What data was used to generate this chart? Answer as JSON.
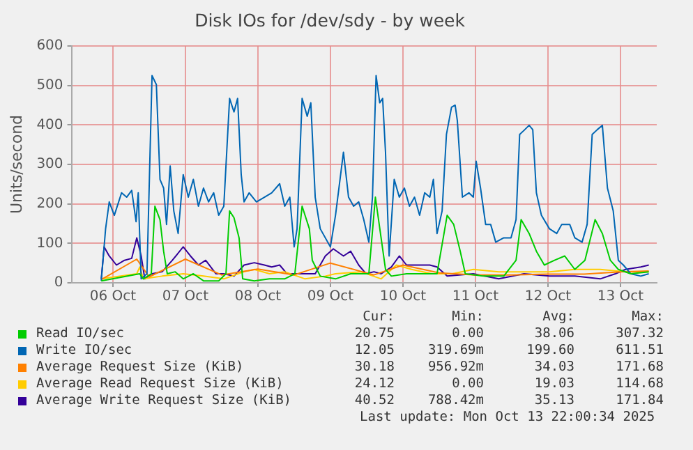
{
  "chart_data": {
    "type": "line",
    "title": "Disk IOs for /dev/sdy - by week",
    "ylabel": "Units/second",
    "xlim": [
      "2025-10-05T22:19",
      "2025-10-14T00:00"
    ],
    "xticks": [
      {
        "value": "2025-10-06T12:00",
        "label": "06 Oct"
      },
      {
        "value": "2025-10-07T12:00",
        "label": "07 Oct"
      },
      {
        "value": "2025-10-08T12:00",
        "label": "08 Oct"
      },
      {
        "value": "2025-10-09T12:00",
        "label": "09 Oct"
      },
      {
        "value": "2025-10-10T12:00",
        "label": "10 Oct"
      },
      {
        "value": "2025-10-11T12:00",
        "label": "11 Oct"
      },
      {
        "value": "2025-10-12T12:00",
        "label": "12 Oct"
      },
      {
        "value": "2025-10-13T12:00",
        "label": "13 Oct"
      }
    ],
    "ylim": [
      0,
      600
    ],
    "yticks": [
      0,
      100,
      200,
      300,
      400,
      500,
      600
    ],
    "grid": true,
    "legend": "bottom",
    "line_style": "solid",
    "marker": "none",
    "series": [
      {
        "name": "Read IO/sec",
        "color": "#00cc00",
        "x": [
          "2025-10-06T08:10",
          "2025-10-06T20:53",
          "2025-10-06T22:05",
          "2025-10-07T00:43",
          "2025-10-07T01:55",
          "2025-10-07T03:36",
          "2025-10-07T04:48",
          "2025-10-07T06:00",
          "2025-10-07T08:38",
          "2025-10-07T11:17",
          "2025-10-07T14:38",
          "2025-10-07T18:00",
          "2025-10-07T23:02",
          "2025-10-08T01:26",
          "2025-10-08T02:38",
          "2025-10-08T04:05",
          "2025-10-08T05:46",
          "2025-10-08T06:58",
          "2025-10-08T10:48",
          "2025-10-08T15:50",
          "2025-10-08T20:53",
          "2025-10-09T00:14",
          "2025-10-09T02:38",
          "2025-10-09T05:02",
          "2025-10-09T06:00",
          "2025-10-09T08:38",
          "2025-10-09T13:41",
          "2025-10-09T18:43",
          "2025-10-10T00:43",
          "2025-10-10T02:53",
          "2025-10-10T04:34",
          "2025-10-10T06:14",
          "2025-10-10T08:10",
          "2025-10-10T13:12",
          "2025-10-10T18:14",
          "2025-10-10T23:17",
          "2025-10-11T02:38",
          "2025-10-11T04:48",
          "2025-10-11T06:58",
          "2025-10-11T08:38",
          "2025-10-11T14:38",
          "2025-10-11T21:22",
          "2025-10-12T01:26",
          "2025-10-12T03:07",
          "2025-10-12T05:46",
          "2025-10-12T08:10",
          "2025-10-12T10:48",
          "2025-10-12T14:10",
          "2025-10-12T17:31",
          "2025-10-12T20:53",
          "2025-10-13T00:14",
          "2025-10-13T03:36",
          "2025-10-13T06:00",
          "2025-10-13T08:38",
          "2025-10-13T11:17",
          "2025-10-13T15:22",
          "2025-10-13T21:22"
        ],
        "values": [
          5,
          23,
          10,
          23,
          194,
          160,
          80,
          23,
          28,
          10,
          23,
          5,
          5,
          23,
          182,
          165,
          114,
          10,
          5,
          10,
          10,
          23,
          194,
          137,
          57,
          17,
          10,
          23,
          23,
          217,
          125,
          34,
          17,
          23,
          23,
          23,
          171,
          148,
          80,
          23,
          17,
          17,
          57,
          160,
          125,
          80,
          45,
          57,
          68,
          34,
          57,
          160,
          125,
          57,
          34,
          23,
          28
        ]
      },
      {
        "name": "Write IO/sec",
        "color": "#0066b3",
        "x": [
          "2025-10-06T08:10",
          "2025-10-06T09:36",
          "2025-10-06T10:48",
          "2025-10-06T12:29",
          "2025-10-06T14:53",
          "2025-10-06T16:34",
          "2025-10-06T18:14",
          "2025-10-06T19:41",
          "2025-10-06T20:24",
          "2025-10-06T21:22",
          "2025-10-06T23:17",
          "2025-10-07T00:58",
          "2025-10-07T02:24",
          "2025-10-07T03:36",
          "2025-10-07T04:48",
          "2025-10-07T05:46",
          "2025-10-07T06:58",
          "2025-10-07T08:10",
          "2025-10-07T09:36",
          "2025-10-07T11:17",
          "2025-10-07T12:58",
          "2025-10-07T14:38",
          "2025-10-07T16:19",
          "2025-10-07T18:00",
          "2025-10-07T19:41",
          "2025-10-07T21:22",
          "2025-10-07T23:02",
          "2025-10-08T00:43",
          "2025-10-08T02:38",
          "2025-10-08T04:05",
          "2025-10-08T05:17",
          "2025-10-08T06:29",
          "2025-10-08T07:26",
          "2025-10-08T09:07",
          "2025-10-08T11:31",
          "2025-10-08T14:10",
          "2025-10-08T16:34",
          "2025-10-08T19:12",
          "2025-10-08T20:53",
          "2025-10-08T22:34",
          "2025-10-09T00:00",
          "2025-10-09T00:58",
          "2025-10-09T02:38",
          "2025-10-09T04:19",
          "2025-10-09T05:31",
          "2025-10-09T06:58",
          "2025-10-09T08:38",
          "2025-10-09T12:00",
          "2025-10-09T13:41",
          "2025-10-09T16:19",
          "2025-10-09T18:00",
          "2025-10-09T19:41",
          "2025-10-09T21:22",
          "2025-10-09T23:02",
          "2025-10-10T00:43",
          "2025-10-10T01:55",
          "2025-10-10T03:07",
          "2025-10-10T04:19",
          "2025-10-10T05:17",
          "2025-10-10T06:14",
          "2025-10-10T07:26",
          "2025-10-10T09:07",
          "2025-10-10T10:48",
          "2025-10-10T12:29",
          "2025-10-10T14:10",
          "2025-10-10T15:50",
          "2025-10-10T17:31",
          "2025-10-10T19:12",
          "2025-10-10T20:53",
          "2025-10-10T22:05",
          "2025-10-10T23:17",
          "2025-10-11T00:58",
          "2025-10-11T02:24",
          "2025-10-11T04:05",
          "2025-10-11T05:17",
          "2025-10-11T06:00",
          "2025-10-11T07:41",
          "2025-10-11T09:50",
          "2025-10-11T11:17",
          "2025-10-11T12:14",
          "2025-10-11T13:41",
          "2025-10-11T15:22",
          "2025-10-11T17:02",
          "2025-10-11T18:43",
          "2025-10-11T21:22",
          "2025-10-11T23:46",
          "2025-10-12T01:26",
          "2025-10-12T02:38",
          "2025-10-12T04:19",
          "2025-10-12T05:46",
          "2025-10-12T06:58",
          "2025-10-12T08:10",
          "2025-10-12T09:50",
          "2025-10-12T12:29",
          "2025-10-12T14:53",
          "2025-10-12T16:34",
          "2025-10-12T19:12",
          "2025-10-12T20:53",
          "2025-10-12T23:17",
          "2025-10-13T00:58",
          "2025-10-13T02:38",
          "2025-10-13T04:19",
          "2025-10-13T06:00",
          "2025-10-13T07:41",
          "2025-10-13T09:36",
          "2025-10-13T11:17",
          "2025-10-13T12:58",
          "2025-10-13T15:22",
          "2025-10-13T18:43",
          "2025-10-13T21:22"
        ],
        "values": [
          5,
          137,
          205,
          171,
          228,
          217,
          234,
          155,
          228,
          10,
          23,
          525,
          502,
          262,
          240,
          148,
          296,
          182,
          125,
          274,
          217,
          262,
          194,
          240,
          205,
          228,
          171,
          194,
          467,
          433,
          467,
          274,
          205,
          228,
          205,
          217,
          228,
          251,
          194,
          217,
          91,
          137,
          467,
          422,
          456,
          217,
          137,
          91,
          171,
          331,
          217,
          194,
          205,
          160,
          103,
          217,
          525,
          456,
          467,
          331,
          68,
          262,
          217,
          240,
          194,
          217,
          171,
          228,
          217,
          262,
          125,
          182,
          376,
          445,
          450,
          411,
          217,
          228,
          217,
          308,
          240,
          148,
          148,
          103,
          114,
          114,
          160,
          376,
          388,
          399,
          388,
          228,
          171,
          137,
          125,
          148,
          148,
          114,
          103,
          148,
          376,
          388,
          399,
          240,
          182,
          57,
          45,
          23,
          17,
          23
        ]
      },
      {
        "name": "Average Request Size (KiB)",
        "color": "#ff8000",
        "x": [
          "2025-10-06T08:10",
          "2025-10-06T19:55",
          "2025-10-07T00:00",
          "2025-10-07T12:00",
          "2025-10-08T00:00",
          "2025-10-08T12:00",
          "2025-10-09T00:00",
          "2025-10-09T12:00",
          "2025-10-10T02:24",
          "2025-10-10T12:00",
          "2025-10-11T00:00",
          "2025-10-11T12:00",
          "2025-10-12T00:00",
          "2025-10-12T12:00",
          "2025-10-13T00:00",
          "2025-10-13T12:00",
          "2025-10-13T21:22"
        ],
        "values": [
          8,
          60,
          15,
          60,
          20,
          35,
          20,
          50,
          20,
          45,
          25,
          20,
          20,
          22,
          22,
          28,
          30
        ]
      },
      {
        "name": "Average Read Request Size (KiB)",
        "color": "#ffcc00",
        "x": [
          "2025-10-06T08:10",
          "2025-10-06T19:55",
          "2025-10-06T20:53",
          "2025-10-06T22:05",
          "2025-10-07T04:19",
          "2025-10-07T11:17",
          "2025-10-07T18:00",
          "2025-10-08T00:43",
          "2025-10-08T07:26",
          "2025-10-08T10:48",
          "2025-10-08T15:50",
          "2025-10-08T20:53",
          "2025-10-09T03:36",
          "2025-10-09T10:19",
          "2025-10-09T13:41",
          "2025-10-09T22:05",
          "2025-10-10T04:48",
          "2025-10-10T09:50",
          "2025-10-10T14:53",
          "2025-10-10T21:36",
          "2025-10-11T04:19",
          "2025-10-11T11:17",
          "2025-10-11T19:41",
          "2025-10-12T04:05",
          "2025-10-12T12:29",
          "2025-10-12T20:53",
          "2025-10-13T05:17",
          "2025-10-13T13:41",
          "2025-10-13T21:22"
        ],
        "values": [
          10,
          23,
          40,
          10,
          17,
          23,
          17,
          10,
          28,
          34,
          23,
          28,
          10,
          17,
          23,
          28,
          10,
          45,
          34,
          23,
          23,
          34,
          28,
          28,
          28,
          34,
          34,
          28,
          28
        ]
      },
      {
        "name": "Average Write Request Size (KiB)",
        "color": "#330099",
        "x": [
          "2025-10-06T08:10",
          "2025-10-06T09:07",
          "2025-10-06T10:48",
          "2025-10-06T13:12",
          "2025-10-06T15:50",
          "2025-10-06T18:14",
          "2025-10-06T19:55",
          "2025-10-06T21:22",
          "2025-10-06T22:34",
          "2025-10-07T00:58",
          "2025-10-07T04:19",
          "2025-10-07T07:41",
          "2025-10-07T11:17",
          "2025-10-07T13:41",
          "2025-10-07T16:19",
          "2025-10-07T18:43",
          "2025-10-07T22:05",
          "2025-10-08T00:43",
          "2025-10-08T04:05",
          "2025-10-08T07:26",
          "2025-10-08T10:48",
          "2025-10-08T14:10",
          "2025-10-08T16:34",
          "2025-10-08T19:12",
          "2025-10-08T21:36",
          "2025-10-09T01:55",
          "2025-10-09T06:58",
          "2025-10-09T10:19",
          "2025-10-09T12:58",
          "2025-10-09T16:19",
          "2025-10-09T18:43",
          "2025-10-09T21:22",
          "2025-10-09T23:46",
          "2025-10-10T02:24",
          "2025-10-10T04:48",
          "2025-10-10T08:10",
          "2025-10-10T10:48",
          "2025-10-10T13:12",
          "2025-10-10T16:34",
          "2025-10-10T20:53",
          "2025-10-10T23:17",
          "2025-10-11T02:38",
          "2025-10-11T11:17",
          "2025-10-11T19:41",
          "2025-10-12T04:05",
          "2025-10-12T12:29",
          "2025-10-12T20:53",
          "2025-10-13T05:17",
          "2025-10-13T10:19",
          "2025-10-13T13:41",
          "2025-10-13T18:43",
          "2025-10-13T21:22"
        ],
        "values": [
          10,
          91,
          68,
          45,
          57,
          62,
          114,
          68,
          10,
          23,
          28,
          57,
          91,
          68,
          45,
          57,
          23,
          23,
          17,
          45,
          51,
          45,
          40,
          45,
          23,
          23,
          23,
          68,
          86,
          68,
          80,
          45,
          23,
          28,
          23,
          40,
          68,
          45,
          45,
          45,
          40,
          17,
          23,
          10,
          23,
          17,
          17,
          10,
          23,
          34,
          40,
          45
        ]
      }
    ],
    "annotations": [
      "Cur:",
      "Min:",
      "Avg:",
      "Max:",
      "20.75",
      "0.00",
      "38.06",
      "307.32",
      "12.05",
      "319.69m",
      "199.60",
      "611.51",
      "30.18",
      "956.92m",
      "34.03",
      "171.68",
      "24.12",
      "0.00",
      "19.03",
      "114.68",
      "40.52",
      "788.42m",
      "35.13",
      "171.84",
      "Last update: Mon Oct 13 22:00:34 2025"
    ]
  }
}
